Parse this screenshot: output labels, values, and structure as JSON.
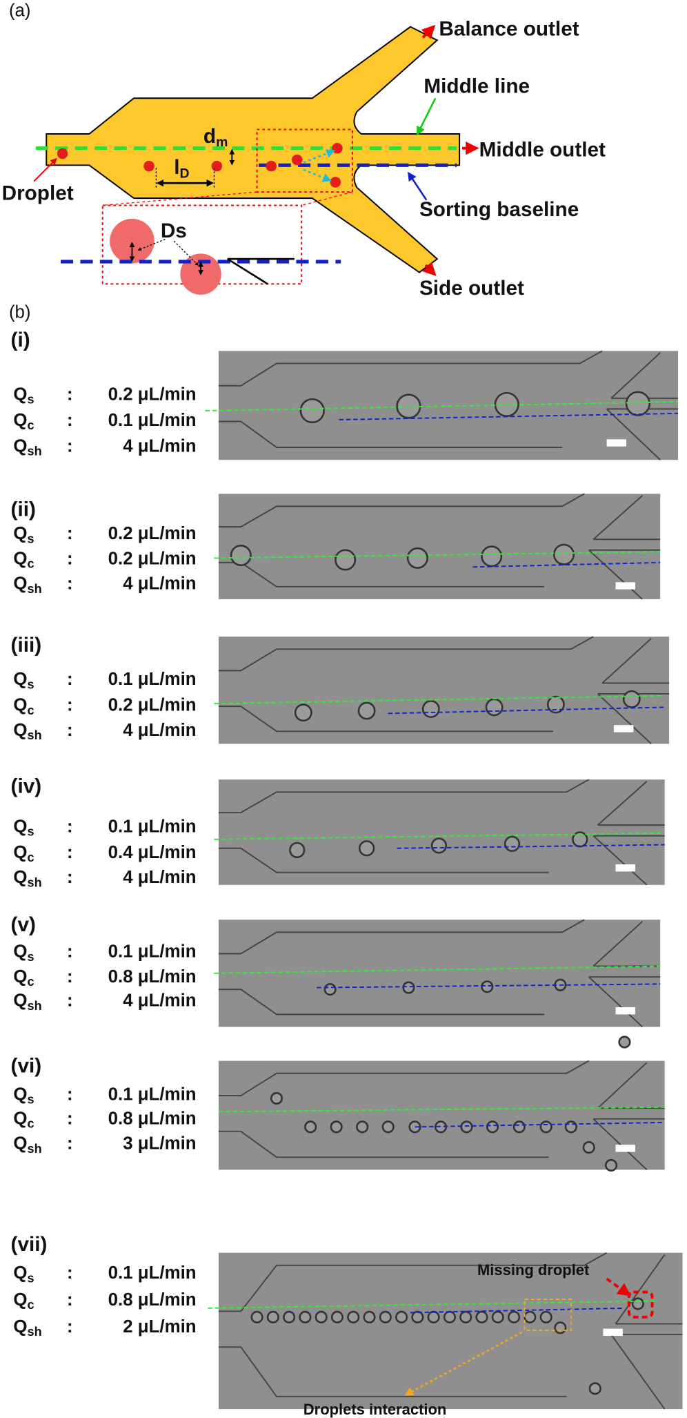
{
  "panel_a": {
    "label": "(a)",
    "balance_outlet": "Balance outlet",
    "middle_line": "Middle line",
    "middle_outlet": "Middle outlet",
    "droplet": "Droplet",
    "sorting_baseline": "Sorting baseline",
    "side_outlet": "Side outlet",
    "dm": {
      "symbol": "d",
      "subscript": "m"
    },
    "lD": {
      "symbol": "l",
      "subscript": "D"
    },
    "Ds": "Ds"
  },
  "panel_b": {
    "label": "(b)",
    "separator": ":",
    "panels": [
      {
        "label": "(i)",
        "rows": [
          {
            "symbol": "Q",
            "subscript": "s",
            "value": "0.2 μL/min"
          },
          {
            "symbol": "Q",
            "subscript": "c",
            "value": "0.1 μL/min"
          },
          {
            "symbol": "Q",
            "subscript": "sh",
            "value": "4 μL/min"
          }
        ]
      },
      {
        "label": "(ii)",
        "rows": [
          {
            "symbol": "Q",
            "subscript": "s",
            "value": "0.2 μL/min"
          },
          {
            "symbol": "Q",
            "subscript": "c",
            "value": "0.2 μL/min"
          },
          {
            "symbol": "Q",
            "subscript": "sh",
            "value": "4 μL/min"
          }
        ]
      },
      {
        "label": "(iii)",
        "rows": [
          {
            "symbol": "Q",
            "subscript": "s",
            "value": "0.1 μL/min"
          },
          {
            "symbol": "Q",
            "subscript": "c",
            "value": "0.2 μL/min"
          },
          {
            "symbol": "Q",
            "subscript": "sh",
            "value": "4 μL/min"
          }
        ]
      },
      {
        "label": "(iv)",
        "rows": [
          {
            "symbol": "Q",
            "subscript": "s",
            "value": "0.1 μL/min"
          },
          {
            "symbol": "Q",
            "subscript": "c",
            "value": "0.4 μL/min"
          },
          {
            "symbol": "Q",
            "subscript": "sh",
            "value": "4 μL/min"
          }
        ]
      },
      {
        "label": "(v)",
        "rows": [
          {
            "symbol": "Q",
            "subscript": "s",
            "value": "0.1 μL/min"
          },
          {
            "symbol": "Q",
            "subscript": "c",
            "value": "0.8 μL/min"
          },
          {
            "symbol": "Q",
            "subscript": "sh",
            "value": "4 μL/min"
          }
        ]
      },
      {
        "label": "(vi)",
        "rows": [
          {
            "symbol": "Q",
            "subscript": "s",
            "value": "0.1 μL/min"
          },
          {
            "symbol": "Q",
            "subscript": "c",
            "value": "0.8 μL/min"
          },
          {
            "symbol": "Q",
            "subscript": "sh",
            "value": "3 μL/min"
          }
        ]
      },
      {
        "label": "(vii)",
        "rows": [
          {
            "symbol": "Q",
            "subscript": "s",
            "value": "0.1 μL/min"
          },
          {
            "symbol": "Q",
            "subscript": "c",
            "value": "0.8 μL/min"
          },
          {
            "symbol": "Q",
            "subscript": "sh",
            "value": "2 μL/min"
          }
        ]
      }
    ],
    "missing_droplet": "Missing droplet",
    "droplets_interaction": "Droplets interaction"
  }
}
